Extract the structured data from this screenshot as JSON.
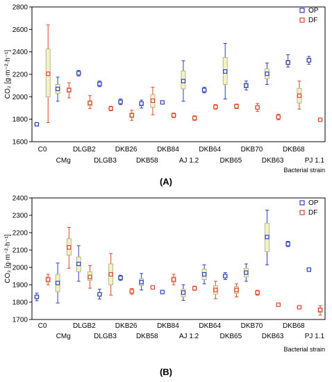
{
  "colors": {
    "OP": "#2b3fc0",
    "DF": "#e0442a",
    "box_fill": "#f2f2c4",
    "box_stroke": "#a8a878"
  },
  "chart_data": [
    {
      "type": "box",
      "panel_label": "(A)",
      "ylabel": "CO₂ [g·m⁻²·h⁻¹]",
      "xlabel": "Bacterial strain",
      "ylim": [
        1600,
        2800
      ],
      "yticks": [
        1600,
        1800,
        2000,
        2200,
        2400,
        2600,
        2800
      ],
      "legend": [
        "OP",
        "DF"
      ],
      "legend_position": "top-right",
      "categories": [
        "C0",
        "CMg",
        "DLGB2",
        "DLGB3",
        "DKB26",
        "DKB58",
        "DKB84",
        "AJ 1.2",
        "DKB64",
        "DKB65",
        "DKB70",
        "DKB63",
        "DKB68",
        "PJ 1.1"
      ],
      "series": [
        {
          "name": "OP",
          "median": [
            1755,
            2070,
            2210,
            2115,
            1955,
            1940,
            1950,
            2140,
            2060,
            2225,
            2100,
            2205,
            2305,
            2325
          ],
          "q1": [
            1748,
            2030,
            2195,
            2100,
            1940,
            1920,
            1950,
            2070,
            2045,
            2110,
            2080,
            2160,
            2285,
            2310
          ],
          "q3": [
            1762,
            2110,
            2225,
            2130,
            1970,
            1955,
            1950,
            2230,
            2075,
            2350,
            2120,
            2250,
            2325,
            2345
          ],
          "min": [
            1745,
            1960,
            2185,
            2090,
            1930,
            1900,
            1950,
            1960,
            2035,
            1980,
            2060,
            2110,
            2265,
            2290
          ],
          "max": [
            1765,
            2175,
            2235,
            2140,
            1980,
            1970,
            1950,
            2320,
            2085,
            2475,
            2140,
            2300,
            2375,
            2360
          ]
        },
        {
          "name": "DF",
          "median": [
            2205,
            2060,
            1945,
            1895,
            1835,
            1965,
            1835,
            1810,
            1910,
            1915,
            1905,
            1820,
            2010,
            1795
          ],
          "q1": [
            2000,
            2040,
            1920,
            1885,
            1815,
            1905,
            1825,
            1800,
            1900,
            1905,
            1890,
            1810,
            1945,
            1790
          ],
          "q3": [
            2425,
            2080,
            1965,
            1905,
            1855,
            2020,
            1845,
            1820,
            1920,
            1925,
            1920,
            1830,
            2075,
            1800
          ],
          "min": [
            1770,
            1990,
            1895,
            1875,
            1790,
            1840,
            1815,
            1790,
            1890,
            1895,
            1870,
            1795,
            1890,
            1785
          ],
          "max": [
            2640,
            2125,
            2010,
            1915,
            1880,
            2085,
            1855,
            1830,
            1930,
            1935,
            1940,
            1845,
            2140,
            1805
          ]
        }
      ]
    },
    {
      "type": "box",
      "panel_label": "(B)",
      "ylabel": "CO₂ [g·m⁻²·h⁻¹]",
      "xlabel": "Bacterial strain",
      "ylim": [
        1700,
        2400
      ],
      "yticks": [
        1700,
        1800,
        1900,
        2000,
        2100,
        2200,
        2300,
        2400
      ],
      "legend": [
        "OP",
        "DF"
      ],
      "legend_position": "top-right",
      "categories": [
        "C0",
        "CMg",
        "DLGB2",
        "DLGB3",
        "DKB26",
        "DKB58",
        "DKB84",
        "AJ 1.2",
        "DKB64",
        "DKB65",
        "DKB70",
        "DKB63",
        "DKB68",
        "PJ 1.1"
      ],
      "series": [
        {
          "name": "OP",
          "median": [
            1830,
            1910,
            2020,
            1845,
            1940,
            1915,
            1858,
            1855,
            1960,
            1950,
            1970,
            2175,
            2135,
            1987
          ],
          "q1": [
            1820,
            1860,
            1975,
            1835,
            1932,
            1895,
            1858,
            1830,
            1930,
            1940,
            1945,
            2090,
            2128,
            1983
          ],
          "q3": [
            1840,
            1960,
            2060,
            1855,
            1948,
            1935,
            1858,
            1875,
            1990,
            1960,
            1995,
            2255,
            2142,
            1991
          ],
          "min": [
            1808,
            1795,
            1920,
            1818,
            1925,
            1870,
            1858,
            1810,
            1905,
            1930,
            1920,
            2015,
            2120,
            1980
          ],
          "max": [
            1852,
            2025,
            2125,
            1875,
            1955,
            1965,
            1858,
            1900,
            2015,
            1970,
            2020,
            2330,
            2150,
            1994
          ]
        },
        {
          "name": "DF",
          "median": [
            1930,
            2115,
            1945,
            1960,
            1862,
            1885,
            1930,
            1880,
            1870,
            1870,
            1855,
            1785,
            1770,
            1755
          ],
          "q1": [
            1915,
            2070,
            1925,
            1900,
            1852,
            1882,
            1915,
            1875,
            1845,
            1850,
            1848,
            1782,
            1765,
            1740
          ],
          "q3": [
            1945,
            2165,
            1975,
            2020,
            1872,
            1888,
            1945,
            1885,
            1895,
            1890,
            1862,
            1788,
            1775,
            1768
          ],
          "min": [
            1900,
            1995,
            1880,
            1840,
            1845,
            1878,
            1900,
            1868,
            1820,
            1830,
            1840,
            1778,
            1760,
            1725
          ],
          "max": [
            1960,
            2230,
            2010,
            2080,
            1878,
            1892,
            1960,
            1892,
            1920,
            1905,
            1868,
            1792,
            1780,
            1780
          ]
        }
      ]
    }
  ]
}
